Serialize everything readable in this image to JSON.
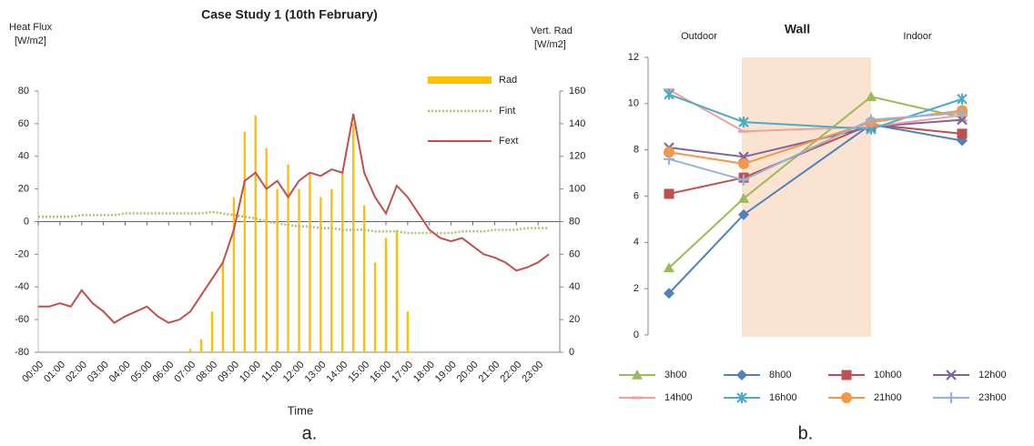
{
  "chart_data": [
    {
      "type": "combo",
      "title": "Case Study 1 (10th February)",
      "ylabel": [
        "Heat Flux",
        "[W/m2]"
      ],
      "y2label": [
        "Vert. Rad",
        "[W/m2]"
      ],
      "xlabel": "Time",
      "caption": "a.",
      "categories": [
        "00:00",
        null,
        "01:00",
        null,
        "02:00",
        null,
        "03:00",
        null,
        "04:00",
        null,
        "05:00",
        null,
        "06:00",
        null,
        "07:00",
        null,
        "08:00",
        null,
        "09:00",
        null,
        "10:00",
        null,
        "11:00",
        null,
        "12:00",
        null,
        "13:00",
        null,
        "14:00",
        null,
        "15:00",
        null,
        "16:00",
        null,
        "17:00",
        null,
        "18:00",
        null,
        "19:00",
        null,
        "20:00",
        null,
        "21:00",
        null,
        "22:00",
        null,
        "23:00",
        null
      ],
      "ylim": [
        -80,
        80
      ],
      "yticks": [
        -80,
        -60,
        -40,
        -20,
        0,
        20,
        40,
        60,
        80
      ],
      "y2lim": [
        0,
        160
      ],
      "y2ticks": [
        0,
        20,
        40,
        60,
        80,
        100,
        120,
        140,
        160
      ],
      "series": [
        {
          "name": "Rad",
          "type": "bar",
          "axis": "y2",
          "color": "#FFC000",
          "values": [
            0,
            0,
            0,
            0,
            0,
            0,
            0,
            0,
            0,
            0,
            0,
            0,
            0,
            0,
            2,
            8,
            25,
            55,
            95,
            135,
            145,
            125,
            100,
            115,
            100,
            110,
            95,
            100,
            110,
            140,
            90,
            55,
            70,
            75,
            25,
            0,
            0,
            0,
            0,
            0,
            0,
            0,
            0,
            0,
            0,
            0,
            0,
            0
          ]
        },
        {
          "name": "Fint",
          "type": "dotted",
          "color": "#A9C46A",
          "values": [
            3,
            3,
            3,
            3,
            4,
            4,
            4,
            4,
            5,
            5,
            5,
            5,
            5,
            5,
            5,
            5,
            6,
            5,
            4,
            3,
            2,
            0,
            -1,
            -2,
            -3,
            -3,
            -4,
            -4,
            -5,
            -5,
            -5,
            -6,
            -6,
            -6,
            -7,
            -7,
            -7,
            -7,
            -7,
            -6,
            -6,
            -6,
            -5,
            -5,
            -5,
            -4,
            -4,
            -4
          ]
        },
        {
          "name": "Fext",
          "type": "line",
          "color": "#C0504D",
          "values": [
            -52,
            -52,
            -50,
            -52,
            -42,
            -50,
            -55,
            -62,
            -58,
            -55,
            -52,
            -58,
            -62,
            -60,
            -55,
            -45,
            -35,
            -25,
            -5,
            25,
            30,
            20,
            25,
            15,
            25,
            30,
            28,
            32,
            30,
            66,
            30,
            15,
            5,
            22,
            15,
            5,
            -5,
            -10,
            -12,
            -10,
            -15,
            -20,
            -22,
            -25,
            -30,
            -28,
            -25,
            -20
          ]
        }
      ]
    },
    {
      "type": "line",
      "caption": "b.",
      "annotations": [
        "Outdoor",
        "Wall",
        "Indoor"
      ],
      "categories": [
        null,
        null,
        null,
        null
      ],
      "ylim": [
        0,
        12
      ],
      "yticks": [
        0,
        2,
        4,
        6,
        8,
        10,
        12
      ],
      "series": [
        {
          "name": "3h00",
          "color": "#9BBB59",
          "marker": "triangle",
          "values": [
            2.9,
            5.9,
            10.3,
            9.4
          ]
        },
        {
          "name": "8h00",
          "color": "#4F81BD",
          "marker": "diamond",
          "values": [
            1.8,
            5.2,
            9.1,
            8.4
          ]
        },
        {
          "name": "10h00",
          "color": "#C0504D",
          "marker": "square",
          "values": [
            6.1,
            6.8,
            9.1,
            8.7
          ]
        },
        {
          "name": "12h00",
          "color": "#8064A2",
          "marker": "x",
          "values": [
            8.1,
            7.7,
            9.0,
            9.3
          ]
        },
        {
          "name": "14h00",
          "color": "#F2A09E",
          "marker": "dash",
          "values": [
            10.6,
            8.8,
            9.0,
            9.5
          ]
        },
        {
          "name": "16h00",
          "color": "#4BACC6",
          "marker": "star",
          "values": [
            10.4,
            9.2,
            8.9,
            10.2
          ]
        },
        {
          "name": "21h00",
          "color": "#F79646",
          "marker": "circle",
          "values": [
            7.9,
            7.4,
            9.2,
            9.7
          ]
        },
        {
          "name": "23h00",
          "color": "#95B3D7",
          "marker": "plus",
          "values": [
            7.6,
            6.7,
            9.3,
            9.6
          ]
        }
      ]
    }
  ]
}
